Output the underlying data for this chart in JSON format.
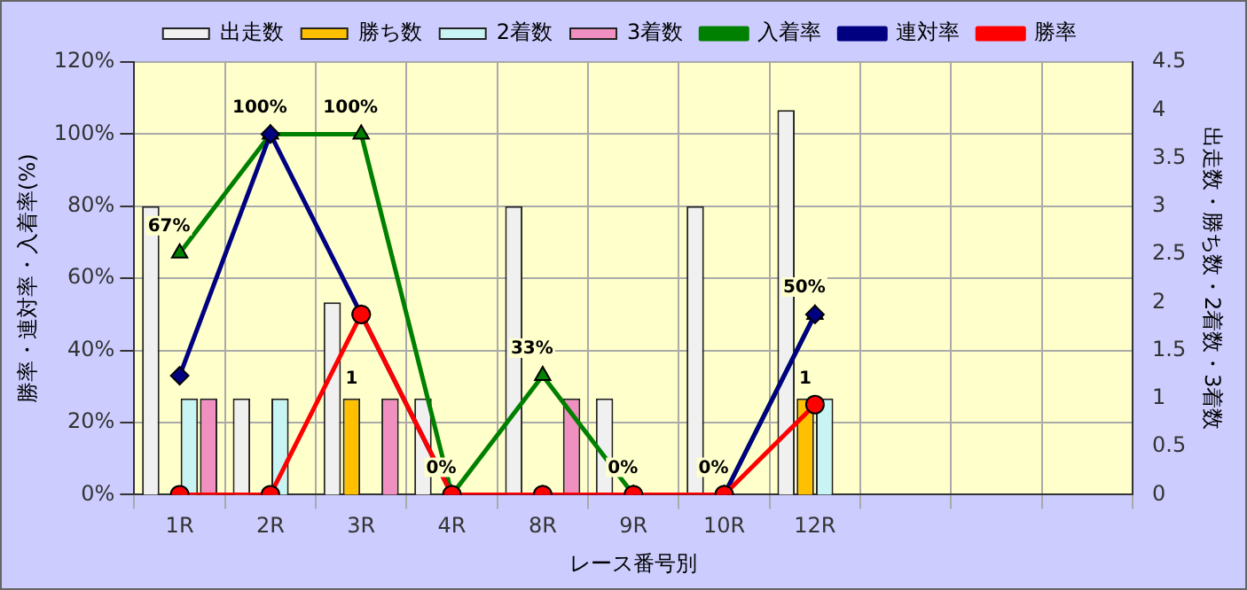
{
  "chart_data": {
    "type": "bar",
    "xlabel": "レース番号別",
    "ylabel": "勝率・連対率・入着率(%)",
    "y2label": "出走数・勝ち数・2着数・3着数",
    "categories": [
      "1R",
      "2R",
      "3R",
      "4R",
      "8R",
      "9R",
      "10R",
      "12R",
      null,
      null,
      null
    ],
    "series": [
      {
        "name": "出走数",
        "axis": "y2",
        "color": "#f0f0f0",
        "values": [
          3,
          1,
          2,
          1,
          3,
          1,
          3,
          4,
          null,
          null,
          null
        ]
      },
      {
        "name": "勝ち数",
        "axis": "y2",
        "color": "#ffc000",
        "values": [
          0,
          0,
          1,
          0,
          0,
          0,
          0,
          1,
          null,
          null,
          null
        ],
        "value_labels": [
          null,
          null,
          "1",
          null,
          null,
          null,
          null,
          "1",
          null,
          null,
          null
        ]
      },
      {
        "name": "2着数",
        "axis": "y2",
        "color": "#c8f4f4",
        "values": [
          1,
          1,
          0,
          0,
          0,
          0,
          0,
          1,
          null,
          null,
          null
        ]
      },
      {
        "name": "3着数",
        "axis": "y2",
        "color": "#f090c0",
        "values": [
          1,
          0,
          1,
          0,
          1,
          0,
          0,
          0,
          null,
          null,
          null
        ]
      },
      {
        "name": "入着率",
        "type": "line",
        "marker": "triangle",
        "color": "#008000",
        "values": [
          67,
          100,
          100,
          0,
          33,
          0,
          0,
          50,
          null,
          null,
          null
        ],
        "value_labels": [
          "67%",
          "100%",
          "100%",
          "0%",
          "33%",
          "0%",
          "0%",
          "50%",
          null,
          null,
          null
        ]
      },
      {
        "name": "連対率",
        "type": "line",
        "marker": "diamond",
        "color": "#000080",
        "values": [
          33,
          100,
          50,
          0,
          0,
          0,
          0,
          50,
          null,
          null,
          null
        ]
      },
      {
        "name": "勝率",
        "type": "line",
        "marker": "circle",
        "color": "#ff0000",
        "values": [
          0,
          0,
          50,
          0,
          0,
          0,
          0,
          25,
          null,
          null,
          null
        ]
      }
    ],
    "ylim": [
      0,
      120
    ],
    "yticks": [
      {
        "value": 0,
        "label": "0%"
      },
      {
        "value": 20,
        "label": "20%"
      },
      {
        "value": 40,
        "label": "40%"
      },
      {
        "value": 60,
        "label": "60%"
      },
      {
        "value": 80,
        "label": "80%"
      },
      {
        "value": 100,
        "label": "100%"
      },
      {
        "value": 120,
        "label": "120%"
      }
    ],
    "y2lim": [
      0,
      4.5
    ],
    "y2ticks": [
      0,
      0.5,
      1,
      1.5,
      2,
      2.5,
      3,
      3.5,
      4,
      4.5
    ],
    "grid": true,
    "legend": "top"
  }
}
